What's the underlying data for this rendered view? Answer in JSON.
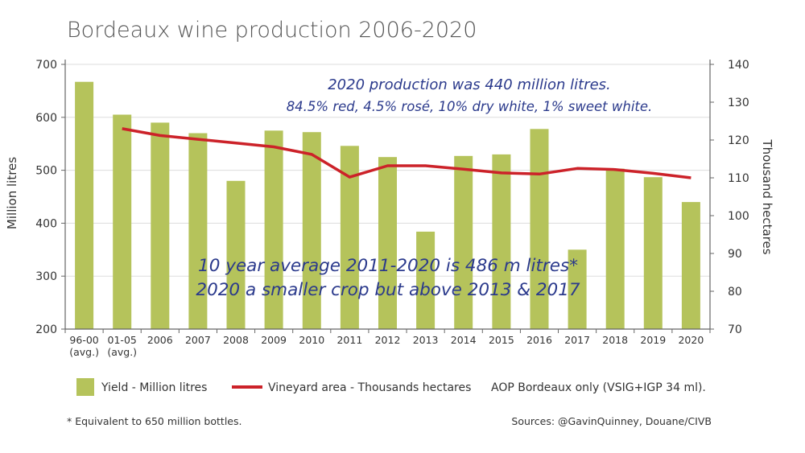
{
  "chart_data": {
    "type": "bar",
    "title": "Bordeaux wine production 2006-2020",
    "categories": [
      [
        "96-00",
        "(avg.)"
      ],
      [
        "01-05",
        "(avg.)"
      ],
      [
        "2006"
      ],
      [
        "2007"
      ],
      [
        "2008"
      ],
      [
        "2009"
      ],
      [
        "2010"
      ],
      [
        "2011"
      ],
      [
        "2012"
      ],
      [
        "2013"
      ],
      [
        "2014"
      ],
      [
        "2015"
      ],
      [
        "2016"
      ],
      [
        "2017"
      ],
      [
        "2018"
      ],
      [
        "2019"
      ],
      [
        "2020"
      ]
    ],
    "ylabel": "Million litres",
    "y2label": "Thousand hectares",
    "ylim": [
      200,
      700
    ],
    "y2lim": [
      70,
      140
    ],
    "yticks": [
      200,
      300,
      400,
      500,
      600,
      700
    ],
    "y2ticks": [
      70,
      80,
      90,
      100,
      110,
      120,
      130,
      140
    ],
    "series": [
      {
        "name": "Yield - Million litres",
        "type": "bar",
        "axis": "left",
        "color": "#b5c35b",
        "values": [
          667,
          605,
          590,
          570,
          480,
          575,
          572,
          546,
          525,
          384,
          527,
          530,
          578,
          350,
          503,
          487,
          440
        ]
      },
      {
        "name": "Vineyard area - Thousands hectares",
        "type": "line",
        "axis": "right",
        "color": "#cc2229",
        "values": [
          null,
          123,
          121.2,
          120.2,
          119.2,
          118.2,
          116.2,
          110.2,
          113.2,
          113.2,
          112.3,
          111.3,
          111.0,
          112.5,
          112.2,
          111.2,
          110.0
        ]
      }
    ],
    "legend_note": "AOP Bordeaux only (VSIG+IGP 34 ml).",
    "annotations": {
      "top": [
        "2020 production was 440 million litres.",
        "84.5% red, 4.5% rosé, 10% dry white, 1% sweet white."
      ],
      "middle": [
        "10 year average 2011-2020 is 486 m litres*",
        "2020 a smaller crop but above 2013 & 2017"
      ]
    },
    "footnote": "* Equivalent to 650 million bottles.",
    "source": "Sources: @GavinQuinney, Douane/CIVB"
  }
}
